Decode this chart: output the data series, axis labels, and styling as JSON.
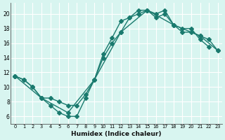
{
  "xlabel": "Humidex (Indice chaleur)",
  "bg_color": "#d8f5f0",
  "grid_color": "#ffffff",
  "line_color": "#1a7a6e",
  "xlim": [
    -0.5,
    23.5
  ],
  "ylim": [
    5,
    21.5
  ],
  "xticks": [
    0,
    1,
    2,
    3,
    4,
    5,
    6,
    7,
    8,
    9,
    10,
    11,
    12,
    13,
    14,
    15,
    16,
    17,
    18,
    19,
    20,
    21,
    22,
    23
  ],
  "yticks": [
    6,
    8,
    10,
    12,
    14,
    16,
    18,
    20
  ],
  "line1_x": [
    0,
    1,
    2,
    3,
    4,
    5,
    6,
    7,
    8,
    9,
    10,
    11,
    12,
    13,
    14,
    15,
    16,
    17,
    18,
    19,
    20,
    21,
    22
  ],
  "line1_y": [
    11.5,
    11.0,
    10.0,
    8.5,
    7.5,
    6.5,
    6.0,
    6.0,
    8.5,
    11.0,
    14.5,
    16.7,
    19.0,
    19.5,
    20.0,
    20.5,
    20.0,
    20.5,
    18.5,
    18.0,
    18.0,
    16.5,
    15.5
  ],
  "line2_x": [
    0,
    1,
    2,
    3,
    4,
    5,
    6,
    7,
    8,
    9,
    10,
    11,
    12,
    13,
    14,
    15,
    16,
    17,
    18,
    19,
    20,
    21,
    22,
    23
  ],
  "line2_y": [
    11.5,
    11.0,
    10.0,
    8.5,
    8.5,
    8.0,
    7.5,
    7.5,
    9.0,
    11.0,
    14.0,
    16.0,
    17.5,
    19.5,
    20.5,
    20.5,
    19.5,
    20.0,
    18.5,
    17.5,
    17.5,
    17.0,
    16.5,
    15.0
  ],
  "line3_x": [
    0,
    3,
    6,
    9,
    12,
    15,
    18,
    21,
    23
  ],
  "line3_y": [
    11.5,
    8.5,
    6.5,
    11.0,
    17.5,
    20.5,
    18.5,
    17.0,
    15.0
  ],
  "marker_size": 3.0,
  "line_width": 1.0
}
